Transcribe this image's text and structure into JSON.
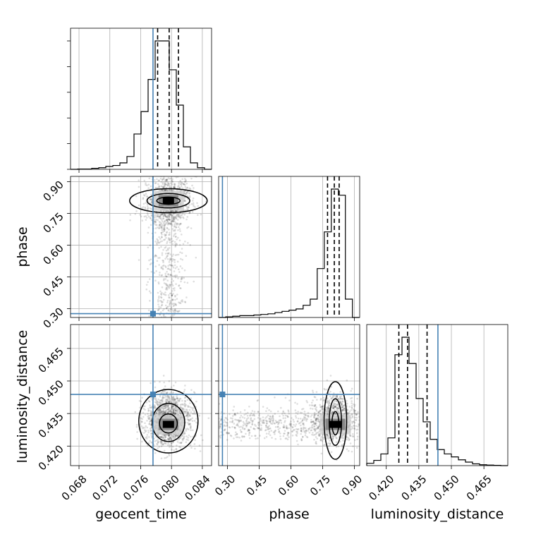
{
  "chart_data": {
    "type": "corner",
    "parameters": [
      "geocent_time",
      "phase",
      "luminosity_distance"
    ],
    "truths": {
      "geocent_time": 0.0776,
      "phase": 0.276,
      "luminosity_distance": 0.4438
    },
    "quantiles": {
      "geocent_time": [
        0.0782,
        0.0797,
        0.0809
      ],
      "phase": [
        0.773,
        0.805,
        0.828
      ],
      "luminosity_distance": [
        0.4258,
        0.4298,
        0.4388
      ]
    },
    "posterior_peaks": {
      "geocent_time": 0.0796,
      "phase": 0.81,
      "luminosity_distance": 0.43
    },
    "axes": {
      "geocent_time": {
        "range": [
          0.0669,
          0.0852
        ],
        "ticks": [
          "0.068",
          "0.072",
          "0.076",
          "0.080",
          "0.084"
        ]
      },
      "phase": {
        "range": [
          0.258,
          0.925
        ],
        "ticks": [
          "0.30",
          "0.45",
          "0.60",
          "0.75",
          "0.90"
        ]
      },
      "luminosity_distance": {
        "range": [
          0.411,
          0.476
        ],
        "ticks": [
          "0.420",
          "0.435",
          "0.450",
          "0.465"
        ]
      }
    },
    "histograms": {
      "geocent_time": {
        "bin_edges_start": 0.0669,
        "bin_width": 0.000915,
        "counts": [
          0,
          1,
          1,
          3,
          5,
          9,
          12,
          20,
          40,
          110,
          180,
          280,
          400,
          400,
          310,
          200,
          70,
          20,
          5,
          0
        ]
      },
      "phase": {
        "bin_edges_start": 0.258,
        "bin_width": 0.0333,
        "counts": [
          0,
          1,
          2,
          3,
          3,
          4,
          5,
          6,
          8,
          10,
          12,
          14,
          20,
          30,
          80,
          140,
          210,
          200,
          30,
          0
        ]
      },
      "luminosity_distance": {
        "bin_edges_start": 0.411,
        "bin_width": 0.00325,
        "counts": [
          8,
          18,
          40,
          95,
          380,
          440,
          350,
          230,
          150,
          90,
          55,
          40,
          30,
          20,
          12,
          6,
          3,
          2,
          1,
          0
        ]
      }
    },
    "grid": true
  }
}
